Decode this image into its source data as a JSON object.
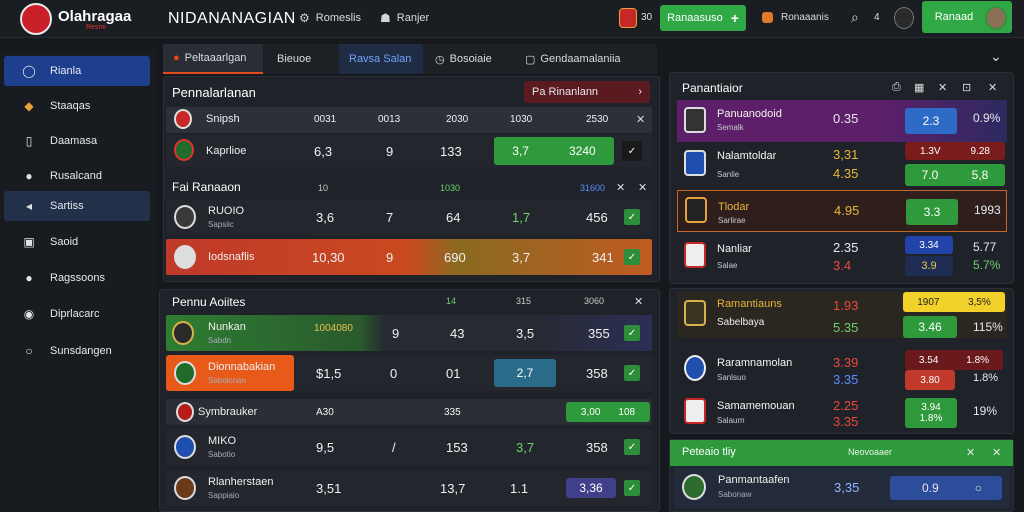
{
  "header": {
    "brand": "Olahragaa",
    "brand_sub": "Resmi",
    "app_name": "NIDANANAGIAN",
    "link1": "Romeslis",
    "link2": "Ranjer",
    "count": "30",
    "action_label": "Ranaasuso",
    "status_label": "Ronaaanis",
    "num": "4",
    "account_label": "Ranaad",
    "icons": {
      "logo": "shield-logo",
      "link1": "gear-icon",
      "link2": "people-icon",
      "search": "search-icon"
    },
    "colors": {
      "accent": "#2fa845",
      "brand": "#c9202a"
    }
  },
  "sidebar": {
    "items": [
      {
        "label": "Rianla",
        "icon": "circle-icon"
      },
      {
        "label": "Staaqas",
        "icon": "tag-icon"
      },
      {
        "label": "Daamasa",
        "icon": "file-icon"
      },
      {
        "label": "Rusalcand",
        "icon": "sphere-icon"
      },
      {
        "label": "Sartiss",
        "icon": "megaphone-icon"
      },
      {
        "label": "Saoid",
        "icon": "box-icon"
      },
      {
        "label": "Ragssoons",
        "icon": "sphere-icon"
      },
      {
        "label": "Diprlacarc",
        "icon": "globe-icon"
      },
      {
        "label": "Sunsdangen",
        "icon": "ring-icon"
      }
    ]
  },
  "tabs": [
    {
      "label": "Peltaaarlgan"
    },
    {
      "label": "Bieuoe"
    },
    {
      "label": "Ravsa Salan"
    },
    {
      "label": "Bosoiaie"
    },
    {
      "label": "Gendaamalaniia"
    }
  ],
  "panel1": {
    "title": "Pennalarlanan",
    "cta": "Pa Rinanlann",
    "rows": [
      {
        "team": "Snipsh",
        "c1": "0031",
        "c2": "0013",
        "c3": "2030",
        "c4": "1030",
        "c5": "2530"
      },
      {
        "team": "Kaprlioe",
        "c1": "6,3",
        "c2": "9",
        "c3": "133",
        "c4": "3,7",
        "c5": "3240"
      }
    ]
  },
  "panel1b": {
    "title": "Fai Ranaaon",
    "h1": "10",
    "h2": "1030",
    "h3": "31600",
    "rows": [
      {
        "team": "RUOIO",
        "sub": "Sapsiic",
        "c1": "3,6",
        "c2": "7",
        "c3": "64",
        "c4": "1,7",
        "c5": "456"
      },
      {
        "team": "Iodsnaflis",
        "c1": "10,30",
        "c2": "9",
        "c3": "690",
        "c4": "3,7",
        "c5": "341"
      }
    ]
  },
  "panel2": {
    "title": "Pennu Aoiites",
    "h1": "14",
    "h2": "315",
    "h3": "3060",
    "rows": [
      {
        "team": "Nunkan",
        "sub": "Sabdn",
        "c0": "1004080",
        "c1": "9",
        "c2": "43",
        "c3": "3,5",
        "c4": "355"
      },
      {
        "team": "Dionnabakian",
        "sub": "Sabolcnan",
        "c0": "$1,5",
        "c1": "0",
        "c2": "01",
        "c3": "2,7",
        "c4": "358"
      },
      {
        "team": "Symbrauker",
        "c0": "A30",
        "c2": "335",
        "c4": "3,00",
        "c5": "108"
      },
      {
        "team": "MIKO",
        "sub": "Sabotio",
        "c0": "9,5",
        "c1": "/",
        "c2": "153",
        "c3": "3,7",
        "c4": "358"
      },
      {
        "team": "Rlanherstaen",
        "sub": "Sappiaio",
        "c0": "3,51",
        "c2": "13,7",
        "c3": "1.1",
        "c4": "3,36"
      }
    ]
  },
  "rpanel": {
    "title": "Panantiaior",
    "rows": [
      {
        "team": "Panuanodoid",
        "sub": "Semalk",
        "odd": "0.35",
        "chip": "2.3",
        "tail": "0.9%"
      },
      {
        "team": "Nalamtoldar",
        "sub": "Sanlie",
        "odd": "3,31",
        "odd2": "4.35",
        "chip": "1.3V",
        "chip2": "7.0",
        "tail": "9.28",
        "tail2": "5,8"
      },
      {
        "team": "Tlodar",
        "sub": "Sarlirae",
        "odd": "4.95",
        "chip": "3.3",
        "tail": "1993"
      },
      {
        "team": "Nanliar",
        "sub": "Salae",
        "odd": "2.35",
        "odd2": "3.4",
        "chip": "3.34",
        "chip2": "3.9",
        "tail": "5.77",
        "tail2": "5.7%"
      }
    ]
  },
  "rpanel2": {
    "rows": [
      {
        "team": "Ramantiauns",
        "sub": "Sabelbaya",
        "odd": "1.93",
        "odd2": "5.35",
        "chip": "1907",
        "chip2": "3.46",
        "tail": "3,5%",
        "tail2": "115%"
      },
      {
        "team": "Raramnamolan",
        "sub": "Sanlsuo",
        "odd": "3.39",
        "odd2": "3.35",
        "chip": "3.54",
        "chip2": "3.80",
        "tail": "1.8%",
        "tail2": "1.8%"
      },
      {
        "team": "Samamemouan",
        "sub": "Salaurn",
        "odd": "2.25",
        "odd2": "3.35",
        "chip": "3.94",
        "chip2": "1.8%",
        "tail": "19%"
      }
    ]
  },
  "bottompanel": {
    "title": "Peteaio tliy",
    "right": "Neovoaaer",
    "row": {
      "team": "Panmantaafen",
      "sub": "Sabonaw",
      "odd": "3,35",
      "chip": "0.9"
    }
  }
}
